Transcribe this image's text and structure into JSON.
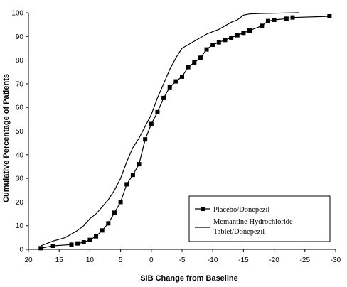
{
  "chart_data": {
    "type": "line",
    "title": "",
    "xlabel": "SIB Change from Baseline",
    "ylabel": "Cumulative Percentage of Patients",
    "x_reversed": true,
    "xlim": [
      20,
      -30
    ],
    "ylim": [
      0,
      100
    ],
    "x_ticks": [
      20,
      15,
      10,
      5,
      0,
      -5,
      -10,
      -15,
      -20,
      -25,
      -30
    ],
    "x_tick_labels": [
      "20",
      "15",
      "10",
      "5",
      "0",
      "-5",
      "-10",
      "-15",
      "-20",
      "-25",
      "-30"
    ],
    "y_ticks": [
      0,
      10,
      20,
      30,
      40,
      50,
      60,
      70,
      80,
      90,
      100
    ],
    "y_tick_labels": [
      "0",
      "10",
      "20",
      "30",
      "40",
      "50",
      "60",
      "70",
      "80",
      "90",
      "100"
    ],
    "grid": false,
    "legend_position": "bottom-right",
    "series": [
      {
        "name": "Placebo/Donepezil",
        "marker": "square",
        "color": "#000000",
        "x": [
          18,
          16,
          13,
          12,
          11,
          10,
          9,
          8,
          7,
          6,
          5,
          4,
          3,
          2,
          1,
          0,
          -1,
          -2,
          -3,
          -4,
          -5,
          -6,
          -7,
          -8,
          -9,
          -10,
          -11,
          -12,
          -13,
          -14,
          -15,
          -16,
          -18,
          -19,
          -20,
          -22,
          -23,
          -29
        ],
        "y": [
          0.5,
          1.5,
          2,
          2.5,
          3,
          4,
          5.5,
          8,
          11,
          15.5,
          20,
          27.5,
          31.5,
          36,
          46.5,
          53,
          58,
          64,
          68.5,
          71,
          73,
          77,
          79,
          81,
          84.5,
          86.5,
          87.5,
          88.5,
          89.5,
          90.5,
          91.5,
          92.5,
          94.5,
          96.5,
          97,
          97.5,
          98,
          98.5
        ]
      },
      {
        "name": "Memantine Hydrochloride Tablet/Donepezil",
        "marker": "none",
        "color": "#000000",
        "x": [
          18,
          16,
          14,
          12,
          11,
          10,
          9,
          8,
          7,
          6,
          5,
          4,
          3,
          2,
          1,
          0,
          -1,
          -2,
          -3,
          -4,
          -5,
          -6,
          -7,
          -8,
          -9,
          -10,
          -11,
          -12,
          -13,
          -14,
          -15,
          -16,
          -18,
          -20,
          -22,
          -24
        ],
        "y": [
          1.5,
          3.5,
          5,
          8,
          10,
          13,
          15,
          18,
          21,
          25,
          30,
          37,
          43,
          47,
          52,
          57,
          64,
          70,
          76,
          81,
          85,
          86.5,
          88,
          89.5,
          91,
          92,
          93,
          94.5,
          96,
          97,
          99,
          99.5,
          99.7,
          99.8,
          99.9,
          100
        ]
      }
    ]
  },
  "legend": {
    "items": [
      {
        "label_lines": [
          "Placebo/Donepezil"
        ]
      },
      {
        "label_lines": [
          "Memantine Hydrochloride",
          "Tablet/Donepezil"
        ]
      }
    ]
  }
}
